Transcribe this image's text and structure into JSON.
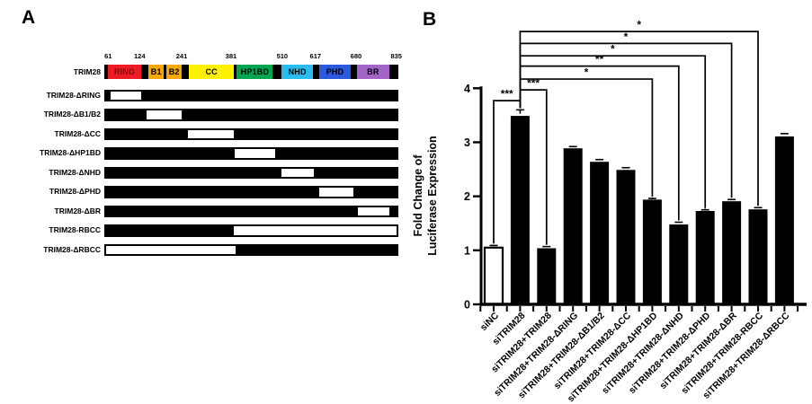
{
  "panel_a": {
    "label": "A",
    "protein_label": "TRIM28",
    "scale_ticks": [
      {
        "value": "61",
        "pos": 1.3
      },
      {
        "value": "124",
        "pos": 12.0
      },
      {
        "value": "241",
        "pos": 26.3
      },
      {
        "value": "381",
        "pos": 43.1
      },
      {
        "value": "510",
        "pos": 60.5
      },
      {
        "value": "617",
        "pos": 71.8
      },
      {
        "value": "680",
        "pos": 85.6
      },
      {
        "value": "835",
        "pos": 99.3
      }
    ],
    "domains": [
      {
        "name": "RING",
        "start": 1.3,
        "end": 12.5,
        "color": "#ED1C24",
        "text_color": "#7D0A0A"
      },
      {
        "name": "B1",
        "start": 15.1,
        "end": 20.2,
        "color": "#F7A800",
        "text_color": "#000000"
      },
      {
        "name": "B2",
        "start": 21.2,
        "end": 26.3,
        "color": "#F7A800",
        "text_color": "#000000"
      },
      {
        "name": "CC",
        "start": 28.8,
        "end": 44.1,
        "color": "#FFF200",
        "text_color": "#000000"
      },
      {
        "name": "HP1BD",
        "start": 45.1,
        "end": 57.3,
        "color": "#00A551",
        "text_color": "#000000"
      },
      {
        "name": "NHD",
        "start": 60.3,
        "end": 71.0,
        "color": "#29BDEF",
        "text_color": "#000000"
      },
      {
        "name": "PHD",
        "start": 73.1,
        "end": 83.8,
        "color": "#2B59E0",
        "text_color": "#000000"
      },
      {
        "name": "BR",
        "start": 85.8,
        "end": 97.0,
        "color": "#A465C9",
        "text_color": "#000000"
      }
    ],
    "constructs": [
      {
        "label": "TRIM28-ΔRING",
        "type": "gap",
        "start": 2.1,
        "end": 12.5
      },
      {
        "label": "TRIM28-ΔB1/B2",
        "type": "gap",
        "start": 14.5,
        "end": 26.4
      },
      {
        "label": "TRIM28-ΔCC",
        "type": "gap",
        "start": 28.5,
        "end": 44.1
      },
      {
        "label": "TRIM28-ΔHP1BD",
        "type": "gap",
        "start": 44.4,
        "end": 58.0
      },
      {
        "label": "TRIM28-ΔNHD",
        "type": "gap",
        "start": 60.1,
        "end": 71.3
      },
      {
        "label": "TRIM28-ΔPHD",
        "type": "gap",
        "start": 73.1,
        "end": 84.6
      },
      {
        "label": "TRIM28-ΔBR",
        "type": "gap",
        "start": 86.3,
        "end": 97.0
      },
      {
        "label": "TRIM28-RBCC",
        "type": "split",
        "black_start": 0,
        "black_end": 44.6
      },
      {
        "label": "TRIM28-ΔRBCC",
        "type": "split",
        "black_start": 44.6,
        "black_end": 100
      }
    ]
  },
  "panel_b": {
    "label": "B"
  },
  "chart_data": {
    "type": "bar",
    "title": "",
    "xlabel": "",
    "ylabel_lines": [
      "Fold Change of",
      "Luciferase Expression"
    ],
    "ylim": [
      0,
      4
    ],
    "yticks": [
      0,
      1,
      2,
      3,
      4
    ],
    "grid": false,
    "categories": [
      "siNC",
      "siTRIM28",
      "siTRIM28+TRIM28",
      "siTRIM28+TRIM28-ΔRING",
      "siTRIM28+TRIM28-ΔB1/B2",
      "siTRIM28+TRIM28-ΔCC",
      "siTRIM28+TRIM28-ΔHP1BD",
      "siTRIM28+TRIM28-ΔNHD",
      "siTRIM28+TRIM28-ΔPHD",
      "siTRIM28+TRIM28-ΔBR",
      "siTRIM28+TRIM28-RBCC",
      "siTRIM28+TRIM28-ΔRBCC"
    ],
    "values": [
      1.05,
      3.48,
      1.03,
      2.88,
      2.63,
      2.48,
      1.93,
      1.47,
      1.72,
      1.9,
      1.75,
      3.1
    ],
    "errors": [
      0.04,
      0.12,
      0.04,
      0.04,
      0.05,
      0.05,
      0.03,
      0.05,
      0.03,
      0.04,
      0.04,
      0.06
    ],
    "white_bar_indices": [
      0
    ],
    "bar_color": "#000000",
    "significance": [
      {
        "from": 0,
        "to": 1,
        "label": "***",
        "height": 3.77
      },
      {
        "from": 1,
        "to": 2,
        "label": "***",
        "height": 3.97
      },
      {
        "from": 1,
        "to": 6,
        "label": "*",
        "height": 4.17
      },
      {
        "from": 1,
        "to": 7,
        "label": "**",
        "height": 4.41
      },
      {
        "from": 1,
        "to": 8,
        "label": "*",
        "height": 4.6
      },
      {
        "from": 1,
        "to": 9,
        "label": "*",
        "height": 4.83
      },
      {
        "from": 1,
        "to": 10,
        "label": "*",
        "height": 5.05
      }
    ]
  }
}
